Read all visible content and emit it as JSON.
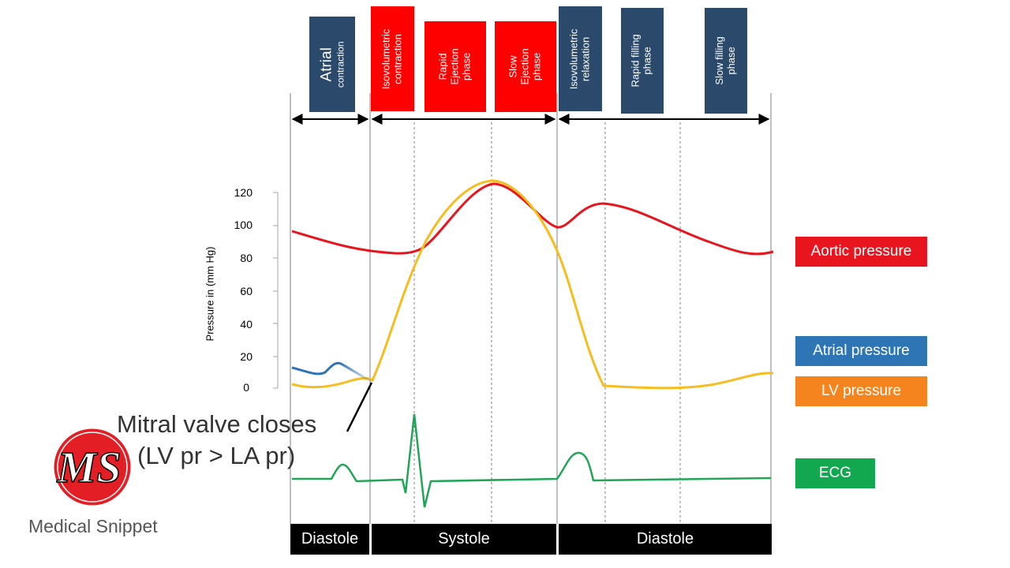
{
  "phases": [
    {
      "line1": "Atrial",
      "line2": "contraction",
      "color": "#2b4a6b"
    },
    {
      "line1": "Isovolumetric",
      "line2": "contraction",
      "color": "#ff0000"
    },
    {
      "line1": "Rapid",
      "line2": "Ejection",
      "line3": "phase",
      "color": "#ff0000"
    },
    {
      "line1": "Slow",
      "line2": "Ejection",
      "line3": "phase",
      "color": "#ff0000"
    },
    {
      "line1": "Isovolumetric",
      "line2": "relaxation",
      "color": "#2b4a6b"
    },
    {
      "line1": "Rapid filling",
      "line2": "phase",
      "color": "#2b4a6b"
    },
    {
      "line1": "Slow filling",
      "line2": "phase",
      "color": "#2b4a6b"
    }
  ],
  "axis": {
    "ylabel": "Pressure in (mm Hg)",
    "ticks": [
      "120",
      "100",
      "80",
      "60",
      "40",
      "20",
      "0"
    ]
  },
  "legend": [
    {
      "label": "Aortic pressure",
      "color": "#e8141e"
    },
    {
      "label": "Atrial pressure",
      "color": "#2e75b6"
    },
    {
      "label": "LV pressure",
      "color": "#f5841f"
    },
    {
      "label": "ECG",
      "color": "#12a84f"
    }
  ],
  "annotation": {
    "title": "Mitral valve closes",
    "subtitle": "(LV pr > LA pr)"
  },
  "bottom_bar": [
    "Diastole",
    "Systole",
    "Diastole"
  ],
  "brand": {
    "initials": "MS",
    "name": "Medical Snippet",
    "color": "#e31e24"
  },
  "curve_colors": {
    "aortic": "#e8141e",
    "lv": "#f5bd1f",
    "atrial": "#2e75b6",
    "ecg": "#21a557"
  }
}
